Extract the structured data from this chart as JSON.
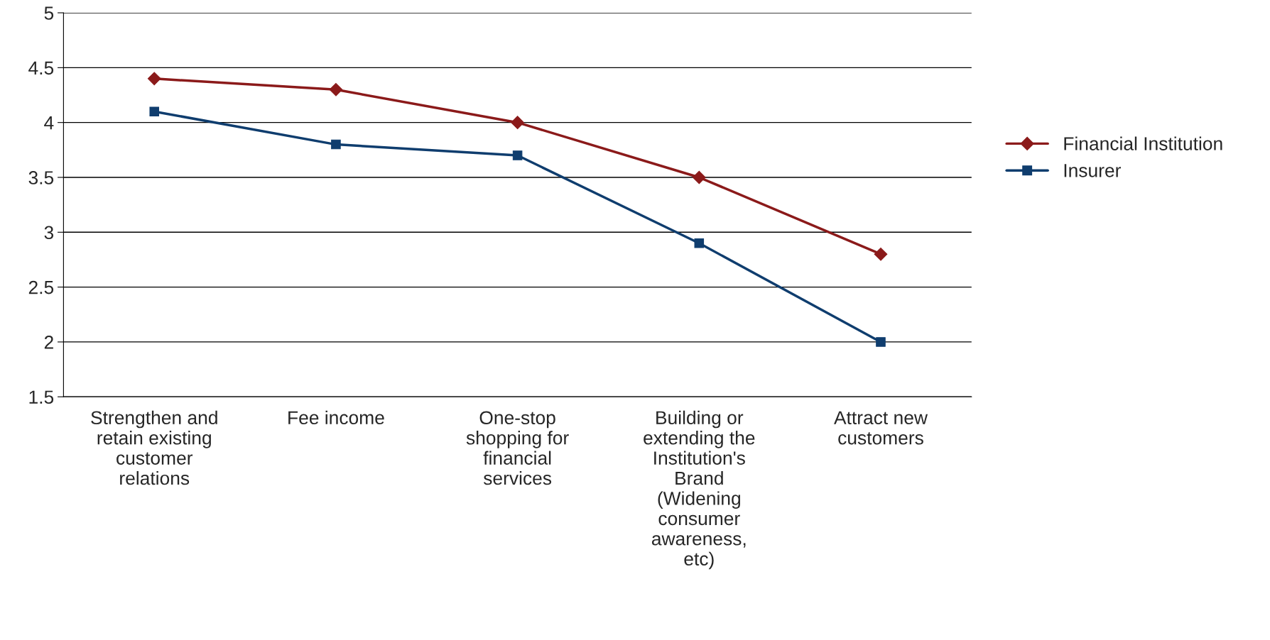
{
  "chart_data": {
    "type": "line",
    "categories": [
      "Strengthen and\nretain existing\ncustomer\nrelations",
      "Fee income",
      "One-stop\nshopping for\nfinancial\nservices",
      "Building or\nextending the\nInstitution's\nBrand\n(Widening\nconsumer\nawareness,\netc)",
      "Attract new\ncustomers"
    ],
    "series": [
      {
        "name": "Financial Institution",
        "color": "#8b1a1a",
        "marker": "diamond",
        "values": [
          4.4,
          4.3,
          4.0,
          3.5,
          2.8
        ]
      },
      {
        "name": "Insurer",
        "color": "#0f3d6e",
        "marker": "square",
        "values": [
          4.1,
          3.8,
          3.7,
          2.9,
          2.0
        ]
      }
    ],
    "ylim": [
      1.5,
      5
    ],
    "yticks": [
      1.5,
      2,
      2.5,
      3,
      3.5,
      4,
      4.5,
      5
    ],
    "grid": "y",
    "legend": "right",
    "line_style": "solid"
  }
}
